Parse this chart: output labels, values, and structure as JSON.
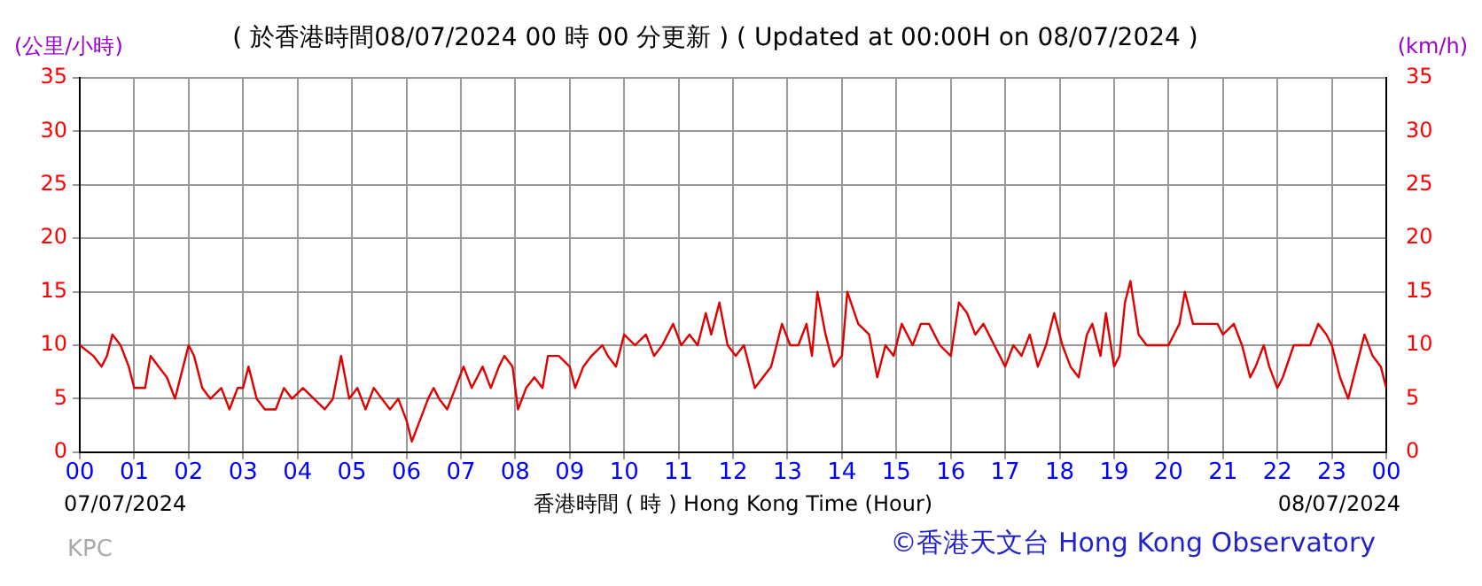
{
  "chart_data": {
    "type": "line",
    "title": "( 於香港時間08/07/2024 00 時 00 分更新 ) ( Updated at 00:00H on 08/07/2024 )",
    "xlabel": "香港時間 ( 時 ) Hong Kong Time (Hour)",
    "ylabel": "(公里/小時)",
    "y2label": "(km/h)",
    "annotations": [
      "07/07/2024",
      "08/07/2024",
      "KPC",
      "©香港天文台 Hong Kong Observatory"
    ],
    "x": [
      0,
      0.25,
      0.4,
      0.5,
      0.6,
      0.75,
      0.9,
      1.0,
      1.2,
      1.3,
      1.45,
      1.6,
      1.75,
      1.9,
      2.0,
      2.1,
      2.25,
      2.4,
      2.6,
      2.75,
      2.9,
      3.0,
      3.1,
      3.25,
      3.4,
      3.6,
      3.75,
      3.9,
      4.1,
      4.3,
      4.5,
      4.65,
      4.8,
      4.95,
      5.1,
      5.25,
      5.4,
      5.55,
      5.7,
      5.85,
      6.0,
      6.1,
      6.25,
      6.4,
      6.5,
      6.6,
      6.75,
      6.9,
      7.05,
      7.2,
      7.4,
      7.55,
      7.7,
      7.8,
      7.95,
      8.05,
      8.2,
      8.35,
      8.5,
      8.6,
      8.8,
      9.0,
      9.1,
      9.25,
      9.4,
      9.6,
      9.7,
      9.85,
      10.0,
      10.2,
      10.4,
      10.55,
      10.7,
      10.9,
      11.05,
      11.2,
      11.35,
      11.5,
      11.6,
      11.75,
      11.9,
      12.05,
      12.2,
      12.4,
      12.55,
      12.7,
      12.9,
      13.05,
      13.2,
      13.35,
      13.45,
      13.55,
      13.7,
      13.85,
      14.0,
      14.1,
      14.3,
      14.5,
      14.65,
      14.8,
      14.95,
      15.1,
      15.3,
      15.45,
      15.6,
      15.8,
      16.0,
      16.15,
      16.3,
      16.45,
      16.6,
      16.8,
      17.0,
      17.15,
      17.3,
      17.45,
      17.6,
      17.75,
      17.9,
      18.05,
      18.2,
      18.35,
      18.5,
      18.6,
      18.75,
      18.85,
      19.0,
      19.1,
      19.2,
      19.3,
      19.45,
      19.6,
      19.7,
      20.0,
      20.2,
      20.3,
      20.45,
      20.6,
      20.9,
      21.0,
      21.2,
      21.35,
      21.5,
      21.6,
      21.75,
      21.85,
      22.0,
      22.1,
      22.3,
      22.6,
      22.75,
      22.9,
      23.0,
      23.15,
      23.3,
      23.45,
      23.6,
      23.75,
      23.9,
      24.0
    ],
    "series": [
      {
        "color": "#e00000",
        "values": [
          10,
          9,
          8,
          9,
          11,
          10,
          8,
          6,
          6,
          9,
          8,
          7,
          5,
          8,
          10,
          9,
          6,
          5,
          6,
          4,
          6,
          6,
          8,
          5,
          4,
          4,
          6,
          5,
          6,
          5,
          4,
          5,
          9,
          5,
          6,
          4,
          6,
          5,
          4,
          5,
          3,
          1,
          3,
          5,
          6,
          5,
          4,
          6,
          8,
          6,
          8,
          6,
          8,
          9,
          8,
          4,
          6,
          7,
          6,
          9,
          9,
          8,
          6,
          8,
          9,
          10,
          9,
          8,
          11,
          10,
          11,
          9,
          10,
          12,
          10,
          11,
          10,
          13,
          11,
          14,
          10,
          9,
          10,
          6,
          7,
          8,
          12,
          10,
          10,
          12,
          9,
          15,
          11,
          8,
          9,
          15,
          12,
          11,
          7,
          10,
          9,
          12,
          10,
          12,
          12,
          10,
          9,
          14,
          13,
          11,
          12,
          10,
          8,
          10,
          9,
          11,
          8,
          10,
          13,
          10,
          8,
          7,
          11,
          12,
          9,
          13,
          8,
          9,
          14,
          16,
          11,
          10,
          10,
          10,
          12,
          15,
          12,
          12,
          12,
          11,
          12,
          10,
          7,
          8,
          10,
          8,
          6,
          7,
          10,
          10,
          12,
          11,
          10,
          7,
          5,
          8,
          11,
          9,
          8,
          6
        ]
      }
    ],
    "xlim": [
      0,
      24
    ],
    "xticks": [
      {
        "value": 0,
        "label": "00"
      },
      {
        "value": 1,
        "label": "01"
      },
      {
        "value": 2,
        "label": "02"
      },
      {
        "value": 3,
        "label": "03"
      },
      {
        "value": 4,
        "label": "04"
      },
      {
        "value": 5,
        "label": "05"
      },
      {
        "value": 6,
        "label": "06"
      },
      {
        "value": 7,
        "label": "07"
      },
      {
        "value": 8,
        "label": "08"
      },
      {
        "value": 9,
        "label": "09"
      },
      10,
      11,
      12,
      13,
      14,
      15,
      16,
      17,
      18,
      19,
      20,
      21,
      22,
      23,
      {
        "value": 24,
        "label": "00"
      }
    ],
    "ylim": [
      0,
      35
    ],
    "yticks": [
      0,
      5,
      10,
      15,
      20,
      25,
      30,
      35
    ],
    "y2lim": [
      0,
      35
    ],
    "y2ticks": [
      0,
      5,
      10,
      15,
      20,
      25,
      30,
      35
    ],
    "grid": true,
    "legend": false,
    "marker": "none",
    "line_style": "solid"
  }
}
